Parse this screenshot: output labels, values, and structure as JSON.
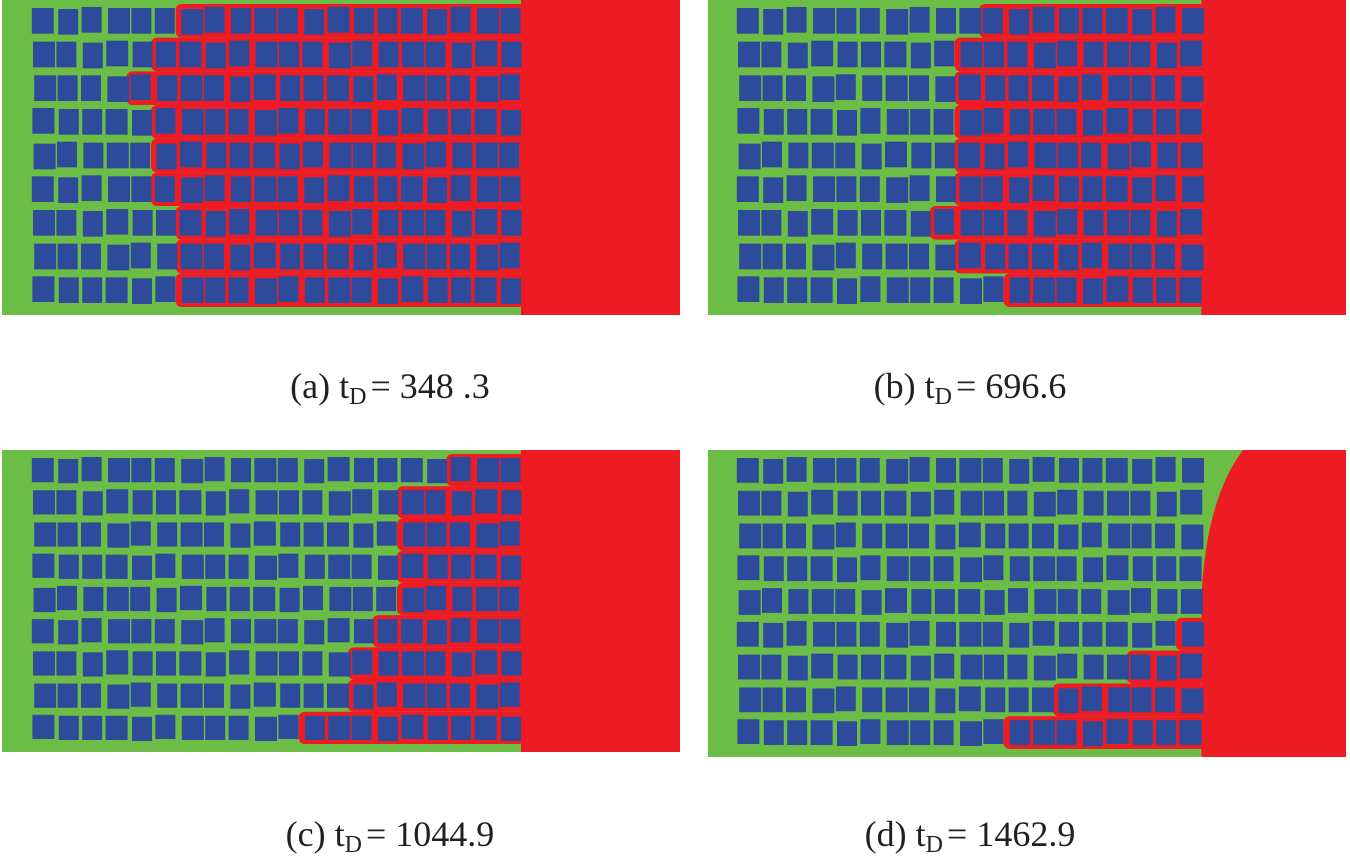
{
  "panels": [
    {
      "label": "(a)",
      "symbol": "t",
      "subscript": "D",
      "value": "= 348 .3"
    },
    {
      "label": "(b)",
      "symbol": "t",
      "subscript": "D",
      "value": "= 696.6"
    },
    {
      "label": "(c)",
      "symbol": "t",
      "subscript": "D",
      "value": "= 1044.9"
    },
    {
      "label": "(d)",
      "symbol": "t",
      "subscript": "D",
      "value": "= 1462.9"
    }
  ]
}
